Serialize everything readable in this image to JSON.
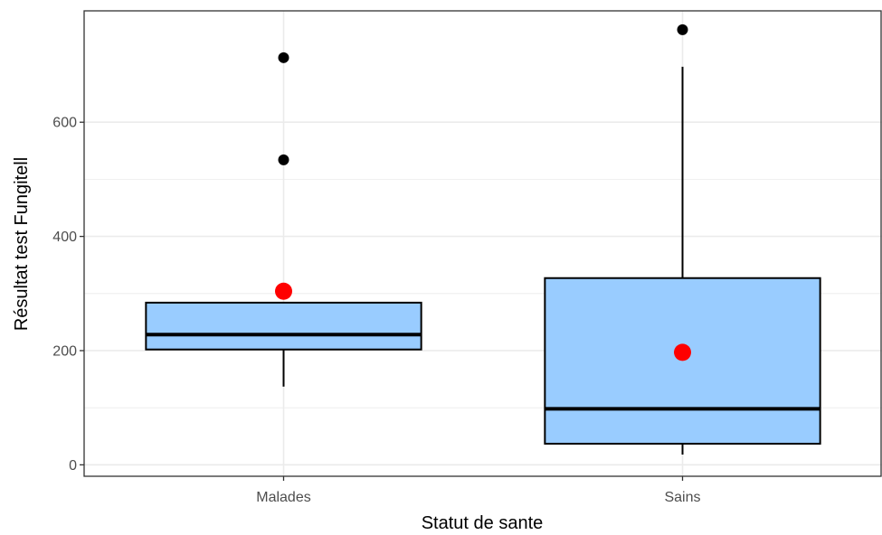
{
  "chart_data": {
    "type": "boxplot",
    "xlabel": "Statut de sante",
    "ylabel": "Résultat test Fungitell",
    "ylim": [
      -20,
      795
    ],
    "y_ticks": [
      0,
      200,
      400,
      600
    ],
    "y_tick_labels": [
      "0",
      "200",
      "400",
      "600"
    ],
    "grid": true,
    "colors": {
      "box_fill": "#99ccff",
      "box_stroke": "#000000",
      "mean_point": "#ff0000",
      "outlier": "#000000",
      "grid": "#ebebeb"
    },
    "categories": [
      "Malades",
      "Sains"
    ],
    "boxes": [
      {
        "category": "Malades",
        "whisker_low": 137,
        "q1": 202,
        "median": 228,
        "q3": 284,
        "whisker_high": 284,
        "mean": 304,
        "outliers": [
          534,
          713
        ]
      },
      {
        "category": "Sains",
        "whisker_low": 18,
        "q1": 37,
        "median": 98,
        "q3": 327,
        "whisker_high": 697,
        "mean": 197,
        "outliers": [
          762
        ]
      }
    ]
  }
}
